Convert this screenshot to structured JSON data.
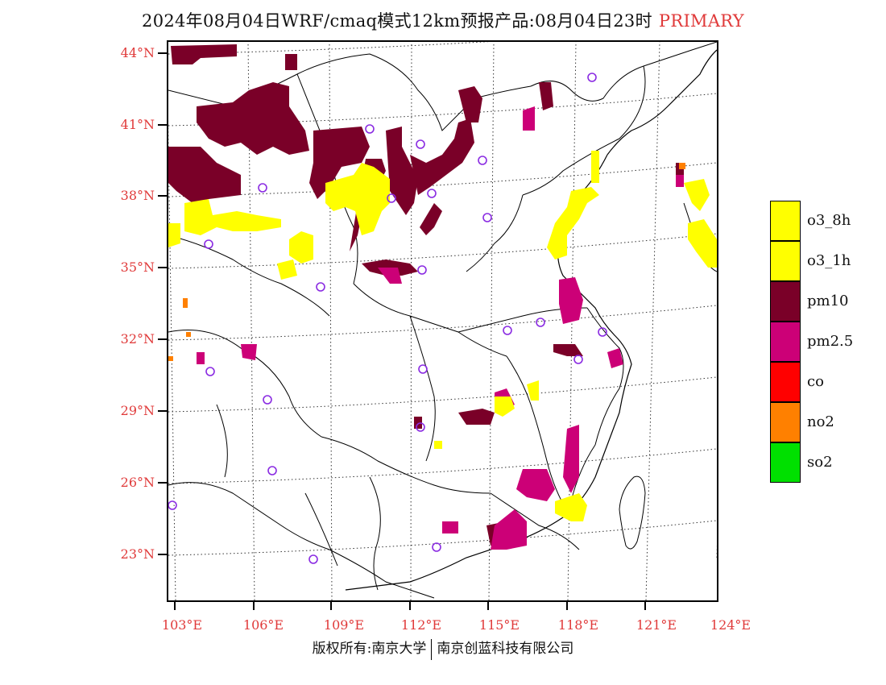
{
  "title": {
    "main": "2024年08月04日WRF/cmaq模式12km预报产品:08月04日23时",
    "primary": "PRIMARY"
  },
  "axes": {
    "lat_labels": [
      "44°N",
      "41°N",
      "38°N",
      "35°N",
      "32°N",
      "29°N",
      "26°N",
      "23°N"
    ],
    "lon_labels": [
      "103°E",
      "106°E",
      "109°E",
      "112°E",
      "115°E",
      "118°E",
      "121°E",
      "124°E"
    ]
  },
  "legend": [
    {
      "label": "o3_8h",
      "color": "#ffff00"
    },
    {
      "label": "o3_1h",
      "color": "#ffff00"
    },
    {
      "label": "pm10",
      "color": "#7a0028"
    },
    {
      "label": "pm2.5",
      "color": "#cc0077"
    },
    {
      "label": "co",
      "color": "#ff0000"
    },
    {
      "label": "no2",
      "color": "#ff8000"
    },
    {
      "label": "so2",
      "color": "#00e000"
    }
  ],
  "colors": {
    "o3": "#ffff00",
    "pm10": "#7a0028",
    "pm25": "#cc0077",
    "no2": "#ff8000",
    "station": "#8a2be2",
    "label_red": "#e03a3a"
  },
  "copyright": {
    "left": "版权所有:南京大学",
    "right": "南京创蓝科技有限公司"
  }
}
